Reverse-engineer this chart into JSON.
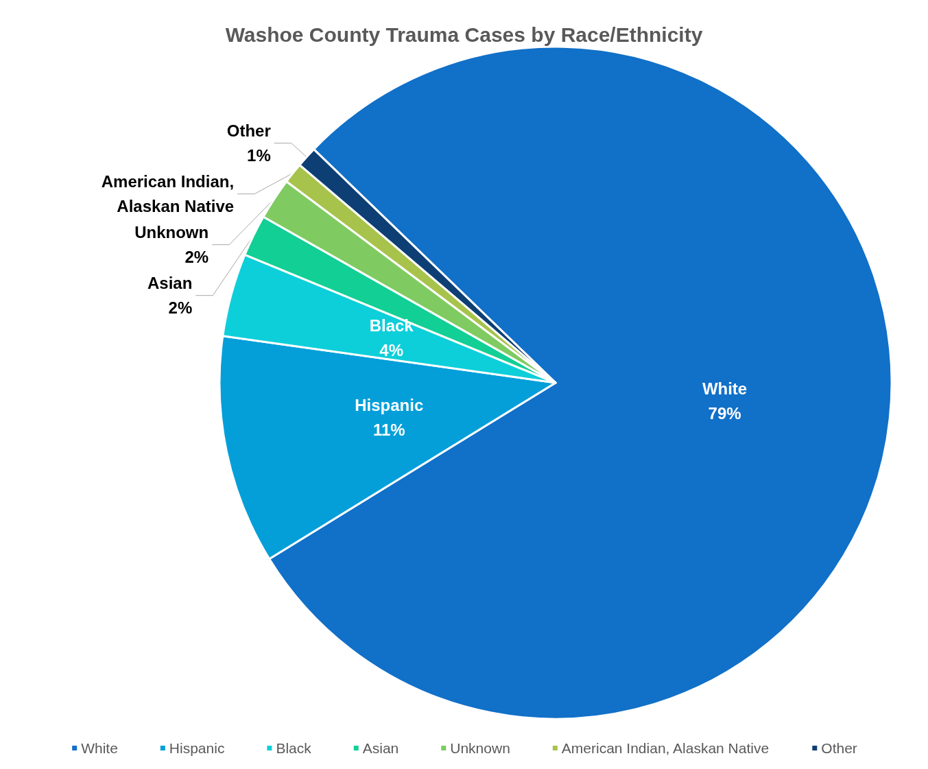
{
  "chart_data": {
    "type": "pie",
    "title": "Washoe County Trauma Cases by Race/Ethnicity",
    "categories": [
      "White",
      "Hispanic",
      "Black",
      "Asian",
      "Unknown",
      "American Indian, Alaskan Native",
      "Other"
    ],
    "values": [
      79,
      11,
      4,
      2,
      2,
      1,
      1
    ],
    "colors": [
      "#1170c8",
      "#049fd9",
      "#0dcfda",
      "#12cf96",
      "#7fcb61",
      "#a8c34b",
      "#0d3f74"
    ],
    "value_labels": [
      "79%",
      "11%",
      "4%",
      "2%",
      "2%",
      null,
      "1%"
    ],
    "legend": "bottom"
  }
}
